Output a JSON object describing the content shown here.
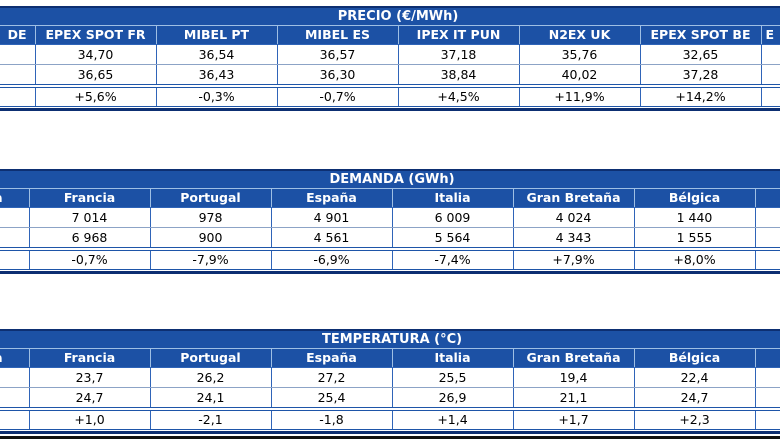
{
  "page": {
    "background": "#FFFFFF"
  },
  "colors": {
    "header_fill": "#1C51A5",
    "outer_border": "#0D2F72",
    "grid_line": "#2F64B8",
    "light_line": "#9FBFE4",
    "row_line": "#8CA3C6",
    "header_text": "#FFFFFF",
    "value_text": "#000000",
    "bottom_rule": "#111111"
  },
  "tables": [
    {
      "title": "PRECIO (€/MWh)",
      "left_clipped_header": "DE",
      "right_clipped_header": "E",
      "columns": [
        "EPEX SPOT FR",
        "MIBEL PT",
        "MIBEL ES",
        "IPEX IT PUN",
        "N2EX UK",
        "EPEX SPOT BE"
      ],
      "rows": [
        [
          "34,70",
          "36,54",
          "36,57",
          "37,18",
          "35,76",
          "32,65"
        ],
        [
          "36,65",
          "36,43",
          "36,30",
          "38,84",
          "40,02",
          "37,28"
        ]
      ],
      "delta_row": [
        "+5,6%",
        "-0,3%",
        "-0,7%",
        "+4,5%",
        "+11,9%",
        "+14,2%"
      ]
    },
    {
      "title": "DEMANDA (GWh)",
      "left_clipped_header": "a",
      "right_clipped_header": "",
      "columns": [
        "Francia",
        "Portugal",
        "España",
        "Italia",
        "Gran Bretaña",
        "Bélgica"
      ],
      "rows": [
        [
          "7 014",
          "978",
          "4 901",
          "6 009",
          "4 024",
          "1 440"
        ],
        [
          "6 968",
          "900",
          "4 561",
          "5 564",
          "4 343",
          "1 555"
        ]
      ],
      "delta_row": [
        "-0,7%",
        "-7,9%",
        "-6,9%",
        "-7,4%",
        "+7,9%",
        "+8,0%"
      ]
    },
    {
      "title": "TEMPERATURA (°C)",
      "left_clipped_header": "a",
      "right_clipped_header": "",
      "columns": [
        "Francia",
        "Portugal",
        "España",
        "Italia",
        "Gran Bretaña",
        "Bélgica"
      ],
      "rows": [
        [
          "23,7",
          "26,2",
          "27,2",
          "25,5",
          "19,4",
          "22,4"
        ],
        [
          "24,7",
          "24,1",
          "25,4",
          "26,9",
          "21,1",
          "24,7"
        ]
      ],
      "delta_row": [
        "+1,0",
        "-2,1",
        "-1,8",
        "+1,4",
        "+1,7",
        "+2,3"
      ]
    }
  ]
}
